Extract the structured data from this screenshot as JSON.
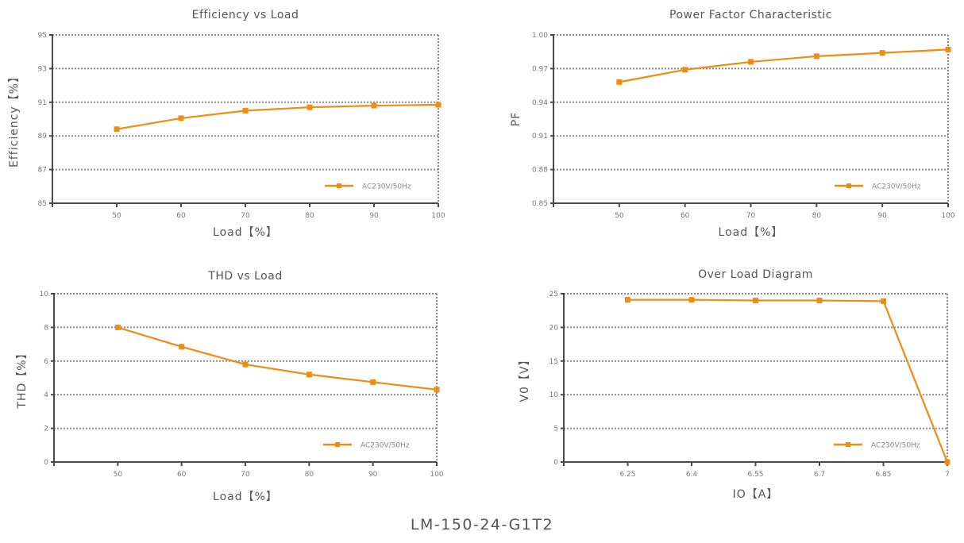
{
  "footer": {
    "model": "LM-150-24-G1T2"
  },
  "colors": {
    "series": "#ef8c12",
    "axis": "#4a4a4a",
    "grid": "#8a8a8a",
    "text": "#666666"
  },
  "chart_data": [
    {
      "type": "line",
      "title": "Efficiency vs Load",
      "xlabel": "Load【%】",
      "ylabel": "Efficiency【%】",
      "xlim": [
        40,
        100
      ],
      "ylim": [
        85,
        95
      ],
      "xticks": [
        "50",
        "60",
        "70",
        "80",
        "90",
        "100"
      ],
      "yticks": [
        "85",
        "87",
        "89",
        "91",
        "93",
        "95"
      ],
      "grid": true,
      "legend": "bottom-right",
      "series": [
        {
          "name": "AC230V/50Hz",
          "x": [
            50,
            60,
            70,
            80,
            90,
            100
          ],
          "y": [
            89.4,
            90.05,
            90.5,
            90.7,
            90.8,
            90.85
          ]
        }
      ]
    },
    {
      "type": "line",
      "title": "Power Factor Characteristic",
      "xlabel": "Load【%】",
      "ylabel": "PF",
      "xlim": [
        40,
        100
      ],
      "ylim": [
        0.85,
        1.0
      ],
      "xticks": [
        "50",
        "60",
        "70",
        "80",
        "90",
        "100"
      ],
      "yticks": [
        "0.85",
        "0.88",
        "0.91",
        "0.94",
        "0.97",
        "1.00"
      ],
      "grid": true,
      "legend": "bottom-right",
      "series": [
        {
          "name": "AC230V/50Hz",
          "x": [
            50,
            60,
            70,
            80,
            90,
            100
          ],
          "y": [
            0.958,
            0.969,
            0.976,
            0.981,
            0.984,
            0.987
          ]
        }
      ]
    },
    {
      "type": "line",
      "title": "THD vs Load",
      "xlabel": "Load【%】",
      "ylabel": "THD【%】",
      "xlim": [
        40,
        100
      ],
      "ylim": [
        0,
        10
      ],
      "xticks": [
        "50",
        "60",
        "70",
        "80",
        "90",
        "100"
      ],
      "yticks": [
        "0",
        "2",
        "4",
        "6",
        "8",
        "10"
      ],
      "grid": true,
      "legend": "bottom-right",
      "series": [
        {
          "name": "AC230V/50Hz",
          "x": [
            50,
            60,
            70,
            80,
            90,
            100
          ],
          "y": [
            8.0,
            6.85,
            5.8,
            5.2,
            4.75,
            4.3
          ]
        }
      ]
    },
    {
      "type": "line",
      "title": "Over Load Diagram",
      "xlabel": "IO【A】",
      "ylabel": "V0【V】",
      "xlim": [
        6.1,
        7.0
      ],
      "ylim": [
        0,
        25
      ],
      "xticks": [
        "6.25",
        "6.4",
        "6.55",
        "6.7",
        "6.85",
        "7"
      ],
      "yticks": [
        "0",
        "5",
        "10",
        "15",
        "20",
        "25"
      ],
      "grid": true,
      "legend": "bottom-right",
      "series": [
        {
          "name": "AC230V/50Hz",
          "x": [
            6.25,
            6.4,
            6.55,
            6.7,
            6.85,
            7.0
          ],
          "y": [
            24.1,
            24.1,
            24.0,
            24.0,
            23.9,
            0
          ]
        }
      ]
    }
  ]
}
